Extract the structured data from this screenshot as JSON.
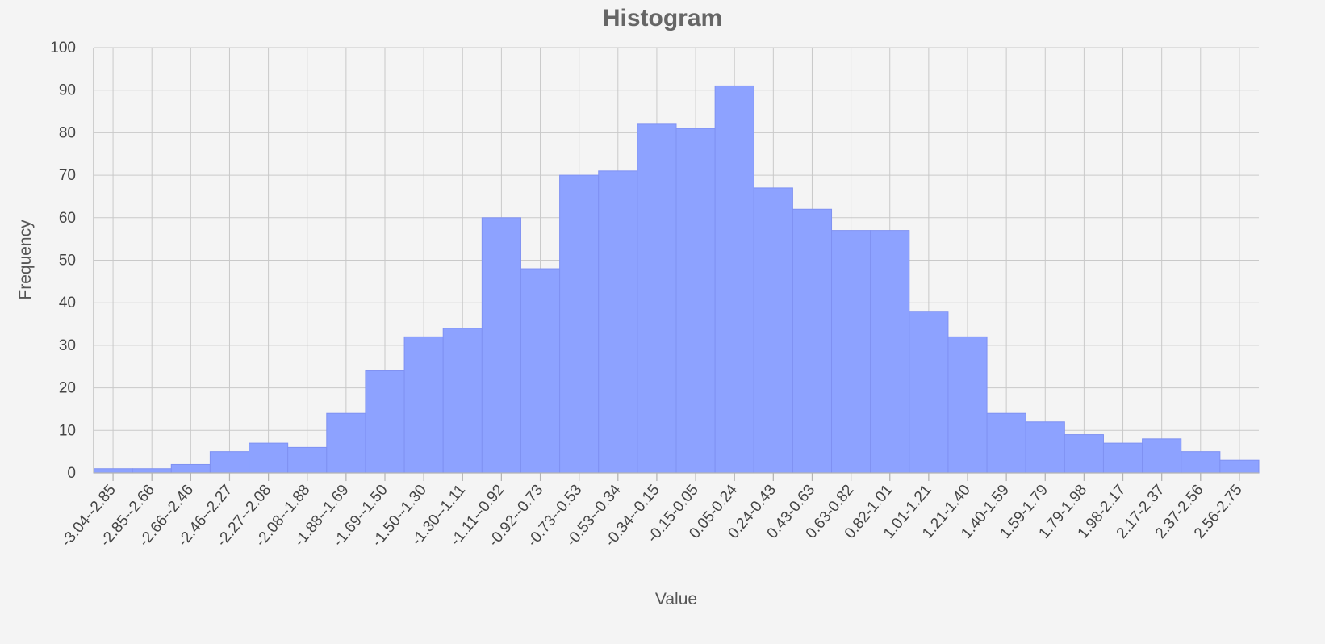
{
  "chart_data": {
    "type": "bar",
    "title": "Histogram",
    "xlabel": "Value",
    "ylabel": "Frequency",
    "ylim": [
      0,
      100
    ],
    "yticks": [
      0,
      10,
      20,
      30,
      40,
      50,
      60,
      70,
      80,
      90,
      100
    ],
    "grid": true,
    "colors": {
      "bar_fill": "#8da2ff",
      "bar_stroke": "#7f91f2",
      "grid": "#c9c9c9",
      "background": "#f4f4f4"
    },
    "categories": [
      "-3.04--2.85",
      "-2.85--2.66",
      "-2.66--2.46",
      "-2.46--2.27",
      "-2.27--2.08",
      "-2.08--1.88",
      "-1.88--1.69",
      "-1.69--1.50",
      "-1.50--1.30",
      "-1.30--1.11",
      "-1.11--0.92",
      "-0.92--0.73",
      "-0.73--0.53",
      "-0.53--0.34",
      "-0.34--0.15",
      "-0.15-0.05",
      "0.05-0.24",
      "0.24-0.43",
      "0.43-0.63",
      "0.63-0.82",
      "0.82-1.01",
      "1.01-1.21",
      "1.21-1.40",
      "1.40-1.59",
      "1.59-1.79",
      "1.79-1.98",
      "1.98-2.17",
      "2.17-2.37",
      "2.37-2.56",
      "2.56-2.75"
    ],
    "values": [
      1,
      1,
      2,
      5,
      7,
      6,
      14,
      24,
      32,
      34,
      60,
      48,
      70,
      71,
      82,
      81,
      91,
      67,
      62,
      57,
      57,
      38,
      32,
      14,
      12,
      9,
      7,
      8,
      5,
      3
    ]
  }
}
